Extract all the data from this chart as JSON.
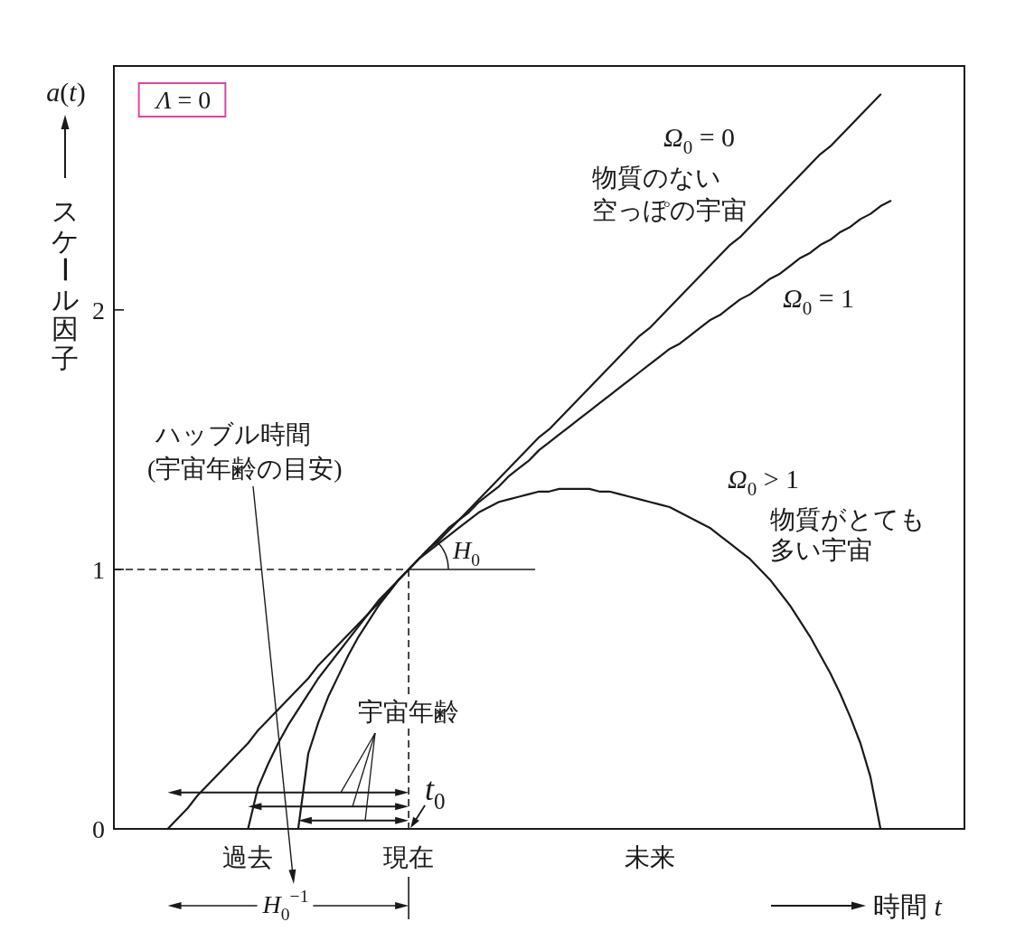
{
  "chart_data": {
    "type": "line",
    "xlabel": "時間 t",
    "ylabel": "スケール因子",
    "ylim": [
      0,
      2.94
    ],
    "yticks": [
      0,
      1,
      2
    ],
    "categories": [
      null,
      null,
      null,
      null,
      null,
      null,
      null,
      null,
      null,
      null,
      null,
      null,
      null,
      "過去",
      null,
      null,
      null,
      null,
      null,
      null,
      null,
      null,
      null,
      null,
      null,
      null,
      null,
      null,
      null,
      "現在",
      null,
      null,
      null,
      null,
      null,
      null,
      null,
      null,
      null,
      null,
      null,
      null,
      null,
      null,
      null,
      null,
      null,
      null,
      null,
      null,
      null,
      null,
      null,
      "未来",
      null,
      null,
      null,
      null,
      null,
      null,
      null,
      null,
      null,
      null,
      null,
      null,
      null,
      null,
      null,
      null,
      null,
      null,
      null,
      null,
      null,
      null,
      null,
      null,
      null,
      null,
      null,
      null,
      null,
      null,
      null
    ],
    "series": [
      {
        "name": "Ω$_{0}$ = 0",
        "color": "#1a1a1a",
        "values": [
          null,
          null,
          null,
          null,
          null,
          0,
          0.04,
          0.08,
          0.13,
          0.17,
          0.21,
          0.25,
          0.29,
          0.33,
          0.38,
          0.42,
          0.46,
          0.5,
          0.54,
          0.58,
          0.63,
          0.67,
          0.71,
          0.75,
          0.79,
          0.83,
          0.88,
          0.92,
          0.96,
          1,
          1.04,
          1.08,
          1.12,
          1.16,
          1.19,
          1.23,
          1.27,
          1.31,
          1.35,
          1.39,
          1.43,
          1.47,
          1.51,
          1.54,
          1.58,
          1.62,
          1.66,
          1.7,
          1.74,
          1.78,
          1.82,
          1.86,
          1.9,
          1.93,
          1.97,
          2.01,
          2.05,
          2.09,
          2.13,
          2.17,
          2.21,
          2.25,
          2.28,
          2.32,
          2.36,
          2.4,
          2.44,
          2.48,
          2.52,
          2.56,
          2.6,
          2.63,
          2.67,
          2.71,
          2.75,
          2.79,
          2.83,
          null,
          null,
          null,
          null,
          null,
          null,
          null,
          null
        ]
      },
      {
        "name": "Ω$_{0}$ = 1",
        "color": "#1a1a1a",
        "values": [
          null,
          null,
          null,
          null,
          null,
          null,
          null,
          null,
          null,
          null,
          null,
          null,
          null,
          0,
          0.16,
          0.25,
          0.33,
          0.4,
          0.46,
          0.52,
          0.58,
          0.63,
          0.68,
          0.73,
          0.78,
          0.83,
          0.87,
          0.91,
          0.96,
          1,
          1.04,
          1.08,
          1.11,
          1.15,
          1.19,
          1.22,
          1.26,
          1.29,
          1.32,
          1.36,
          1.39,
          1.42,
          1.46,
          1.49,
          1.52,
          1.55,
          1.58,
          1.61,
          1.64,
          1.67,
          1.7,
          1.73,
          1.76,
          1.79,
          1.82,
          1.85,
          1.87,
          1.9,
          1.93,
          1.96,
          1.98,
          2.01,
          2.04,
          2.06,
          2.09,
          2.12,
          2.14,
          2.17,
          2.2,
          2.22,
          2.25,
          2.27,
          2.3,
          2.32,
          2.35,
          2.37,
          2.4,
          2.42,
          null,
          null,
          null,
          null,
          null,
          null,
          null
        ]
      },
      {
        "name": "Ω$_{0}$ > 1",
        "color": "#1a1a1a",
        "values": [
          null,
          null,
          null,
          null,
          null,
          null,
          null,
          null,
          null,
          null,
          null,
          null,
          null,
          null,
          null,
          null,
          null,
          null,
          0,
          0.29,
          0.41,
          0.51,
          0.59,
          0.67,
          0.74,
          0.8,
          0.86,
          0.91,
          0.96,
          1,
          1.04,
          1.07,
          1.1,
          1.13,
          1.16,
          1.19,
          1.22,
          1.24,
          1.26,
          1.27,
          1.28,
          1.29,
          1.3,
          1.3,
          1.31,
          1.31,
          1.31,
          1.31,
          1.3,
          1.3,
          1.29,
          1.28,
          1.27,
          1.26,
          1.25,
          1.24,
          1.22,
          1.2,
          1.18,
          1.16,
          1.13,
          1.1,
          1.07,
          1.04,
          1.0,
          0.96,
          0.91,
          0.86,
          0.8,
          0.74,
          0.67,
          0.6,
          0.52,
          0.43,
          0.33,
          0.2,
          0,
          null,
          null,
          null,
          null,
          null,
          null,
          null,
          null
        ]
      }
    ],
    "ref_lines": [
      {
        "axis": "y",
        "value": 1,
        "line_style": "dashed"
      },
      {
        "axis": "x",
        "value": "現在",
        "line_style": "dashed"
      }
    ],
    "annotations": [
      "Λ = 0",
      "物質のない",
      "空っぽの宇宙",
      "物質がとても",
      "多い宇宙",
      "ハッブル時間",
      "(宇宙年齢の目安)",
      "宇宙年齢",
      {
        "text": "t$_{0}$",
        "x": "現在",
        "y": 0
      },
      {
        "text": "H$_{0}$",
        "x": "現在",
        "y": 1
      },
      "H$_{0}$$^{−1}$",
      "a(t)"
    ]
  }
}
